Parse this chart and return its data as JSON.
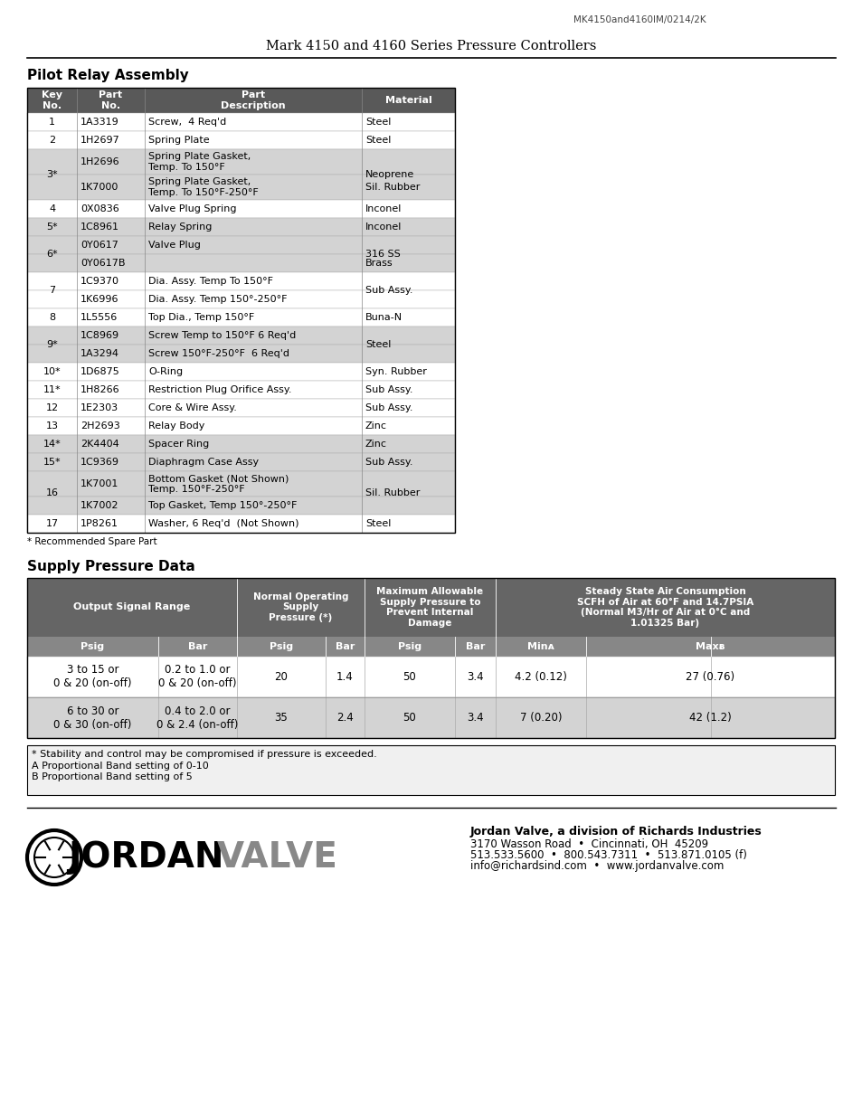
{
  "page_ref": "MK4150and4160IM/0214/2K",
  "header_title": "Mark 4150 and 4160 Series Pressure Controllers",
  "section1_title": "Pilot Relay Assembly",
  "recommended_note": "* Recommended Spare Part",
  "section2_title": "Supply Pressure Data",
  "supply_note1": "* Stability and control may be compromised if pressure is exceeded.",
  "supply_note2": "A Proportional Band setting of 0-10",
  "supply_note3": "B Proportional Band setting of 5",
  "footer_company": "Jordan Valve, a division of Richards Industries",
  "footer_address": "3170 Wasson Road  •  Cincinnati, OH  45209",
  "footer_phone": "513.533.5600  •  800.543.7311  •  513.871.0105 (f)",
  "footer_email": "info@richardsind.com  •  www.jordanvalve.com",
  "table_rows": [
    [
      "1",
      "1A3319",
      "Screw,  4 Req'd",
      "Steel",
      "white",
      20
    ],
    [
      "2",
      "1H2697",
      "Spring Plate",
      "Steel",
      "white",
      20
    ],
    [
      "3*",
      "1H2696",
      "Spring Plate Gasket,\nTemp. To 150°F",
      "Neoprene",
      "light",
      28
    ],
    [
      "",
      "1K7000",
      "Spring Plate Gasket,\nTemp. To 150°F-250°F",
      "Sil. Rubber",
      "light",
      28
    ],
    [
      "4",
      "0X0836",
      "Valve Plug Spring",
      "Inconel",
      "white",
      20
    ],
    [
      "5*",
      "1C8961",
      "Relay Spring",
      "Inconel",
      "light",
      20
    ],
    [
      "6*",
      "0Y0617",
      "Valve Plug",
      "316 SS",
      "light",
      20
    ],
    [
      "",
      "0Y0617B",
      "",
      "Brass",
      "light",
      20
    ],
    [
      "7",
      "1C9370",
      "Dia. Assy. Temp To 150°F",
      "Sub Assy.",
      "white",
      20
    ],
    [
      "",
      "1K6996",
      "Dia. Assy. Temp 150°-250°F",
      "",
      "white",
      20
    ],
    [
      "8",
      "1L5556",
      "Top Dia., Temp 150°F",
      "Buna-N",
      "white",
      20
    ],
    [
      "9*",
      "1C8969",
      "Screw Temp to 150°F 6 Req'd",
      "Steel",
      "light",
      20
    ],
    [
      "",
      "1A3294",
      "Screw 150°F-250°F  6 Req'd",
      "",
      "light",
      20
    ],
    [
      "10*",
      "1D6875",
      "O-Ring",
      "Syn. Rubber",
      "white",
      20
    ],
    [
      "11*",
      "1H8266",
      "Restriction Plug Orifice Assy.",
      "Sub Assy.",
      "white",
      20
    ],
    [
      "12",
      "1E2303",
      "Core & Wire Assy.",
      "Sub Assy.",
      "white",
      20
    ],
    [
      "13",
      "2H2693",
      "Relay Body",
      "Zinc",
      "white",
      20
    ],
    [
      "14*",
      "2K4404",
      "Spacer Ring",
      "Zinc",
      "light",
      20
    ],
    [
      "15*",
      "1C9369",
      "Diaphragm Case Assy",
      "Sub Assy.",
      "light",
      20
    ],
    [
      "16",
      "1K7001",
      "Bottom Gasket (Not Shown)\nTemp. 150°F-250°F",
      "Sil. Rubber",
      "light",
      28
    ],
    [
      "",
      "1K7002",
      "Top Gasket, Temp 150°-250°F",
      "",
      "light",
      20
    ],
    [
      "17",
      "1P8261",
      "Washer, 6 Req'd  (Not Shown)",
      "Steel",
      "white",
      20
    ]
  ],
  "supply_data": [
    [
      "3 to 15 or\n0 & 20 (on-off)",
      "0.2 to 1.0 or\n0 & 20 (on-off)",
      "20",
      "1.4",
      "50",
      "3.4",
      "4.2 (0.12)",
      "27 (0.76)"
    ],
    [
      "6 to 30 or\n0 & 30 (on-off)",
      "0.4 to 2.0 or\n0 & 2.4 (on-off)",
      "35",
      "2.4",
      "50",
      "3.4",
      "7 (0.20)",
      "42 (1.2)"
    ]
  ],
  "merged_groups": {
    "2": 2,
    "6": 2,
    "8": 2,
    "11": 2,
    "19": 2
  },
  "sub_rows": [
    3,
    7,
    9,
    12,
    20
  ]
}
